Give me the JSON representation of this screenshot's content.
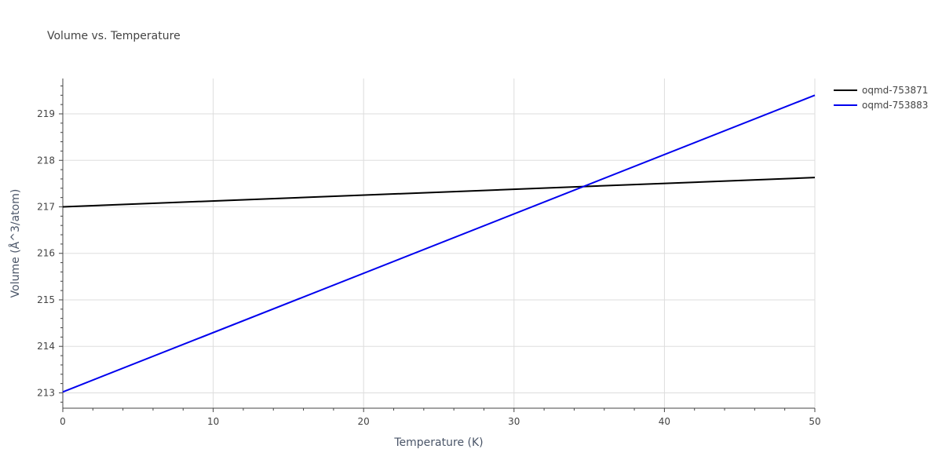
{
  "chart_data": {
    "type": "line",
    "title": "Volume vs. Temperature",
    "xlabel": "Temperature (K)",
    "ylabel": "Volume (Å^3/atom)",
    "xlim": [
      0,
      50
    ],
    "ylim": [
      212.67,
      219.76
    ],
    "x_ticks": [
      0,
      10,
      20,
      30,
      40,
      50
    ],
    "y_ticks": [
      213,
      214,
      215,
      216,
      217,
      218,
      219
    ],
    "grid": true,
    "legend_position": "top-right",
    "series": [
      {
        "name": "oqmd-753871",
        "color": "#000000",
        "x": [
          0,
          50
        ],
        "y": [
          217.0,
          217.63
        ]
      },
      {
        "name": "oqmd-753883",
        "color": "#0000ee",
        "x": [
          0,
          50
        ],
        "y": [
          213.02,
          219.4
        ]
      }
    ]
  }
}
